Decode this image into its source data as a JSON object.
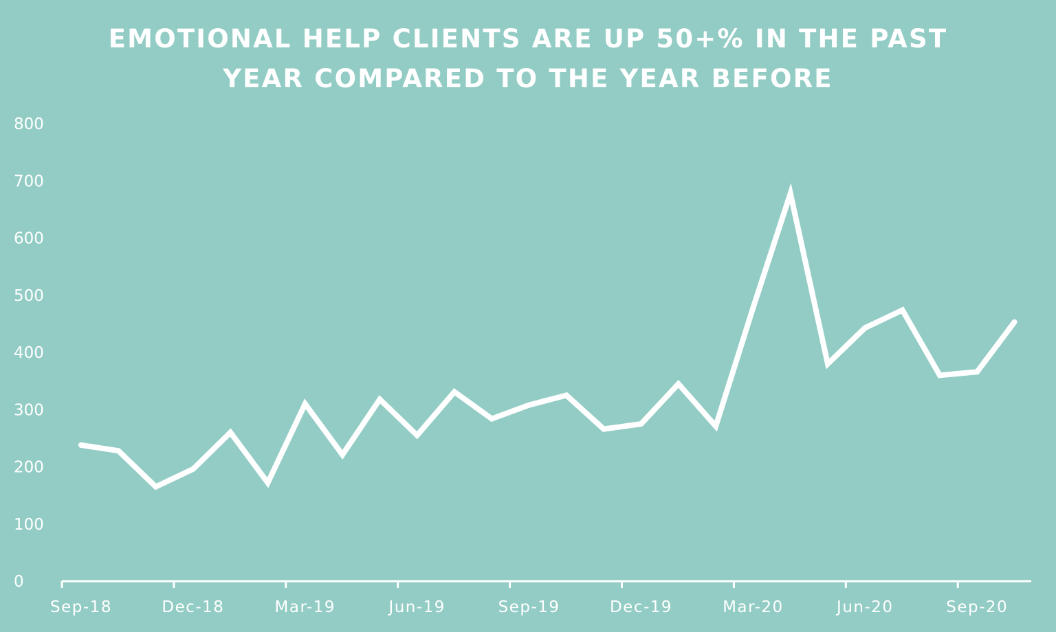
{
  "colors": {
    "background": "#92CCC4",
    "line": "#FFFFFF",
    "text": "#FFFFFF"
  },
  "chart_data": {
    "type": "line",
    "title_lines": [
      "EMOTIONAL HELP CLIENTS ARE UP 50+% IN THE PAST",
      "YEAR COMPARED TO THE YEAR BEFORE"
    ],
    "xlabel": "",
    "ylabel": "",
    "ylim": [
      0,
      800
    ],
    "yticks": [
      "0",
      "100",
      "200",
      "300",
      "400",
      "500",
      "600",
      "700",
      "800"
    ],
    "x_tick_labels": [
      "Sep-18",
      "Dec-18",
      "Mar-19",
      "Jun-19",
      "Sep-19",
      "Dec-19",
      "Mar-20",
      "Jun-20",
      "Sep-20"
    ],
    "grid": false,
    "legend": "none",
    "x": [
      "Sep-18",
      "Oct-18",
      "Nov-18",
      "Dec-18",
      "Jan-19",
      "Feb-19",
      "Mar-19",
      "Apr-19",
      "May-19",
      "Jun-19",
      "Jul-19",
      "Aug-19",
      "Sep-19",
      "Oct-19",
      "Nov-19",
      "Dec-19",
      "Jan-20",
      "Feb-20",
      "Mar-20",
      "Apr-20",
      "May-20",
      "Jun-20",
      "Jul-20",
      "Aug-20",
      "Sep-20",
      "Oct-20"
    ],
    "series": [
      {
        "values": [
          238,
          228,
          165,
          196,
          260,
          172,
          310,
          221,
          318,
          255,
          331,
          284,
          308,
          325,
          266,
          275,
          345,
          271,
          478,
          678,
          380,
          443,
          474,
          360,
          366,
          453
        ]
      }
    ]
  }
}
